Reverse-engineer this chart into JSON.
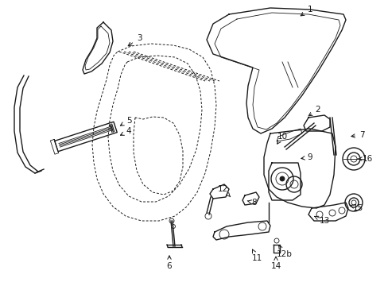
{
  "bg_color": "#ffffff",
  "line_color": "#1a1a1a",
  "lw": 1.0,
  "tlw": 0.6,
  "dlw": 0.7,
  "figsize": [
    4.89,
    3.6
  ],
  "dpi": 100,
  "labels": [
    [
      "1",
      390,
      12,
      375,
      22
    ],
    [
      "2",
      400,
      138,
      385,
      148
    ],
    [
      "3",
      175,
      48,
      158,
      60
    ],
    [
      "4",
      162,
      165,
      148,
      172
    ],
    [
      "5",
      162,
      152,
      148,
      160
    ],
    [
      "6",
      213,
      335,
      213,
      318
    ],
    [
      "7",
      455,
      170,
      438,
      172
    ],
    [
      "8",
      320,
      255,
      308,
      252
    ],
    [
      "9",
      390,
      198,
      375,
      200
    ],
    [
      "10",
      355,
      172,
      348,
      182
    ],
    [
      "11",
      323,
      325,
      317,
      313
    ],
    [
      "12",
      280,
      238,
      290,
      248
    ],
    [
      "12b",
      358,
      320,
      350,
      308
    ],
    [
      "13",
      408,
      278,
      395,
      272
    ],
    [
      "14",
      347,
      335,
      347,
      322
    ],
    [
      "15",
      450,
      262,
      440,
      258
    ],
    [
      "16",
      462,
      200,
      447,
      200
    ]
  ]
}
